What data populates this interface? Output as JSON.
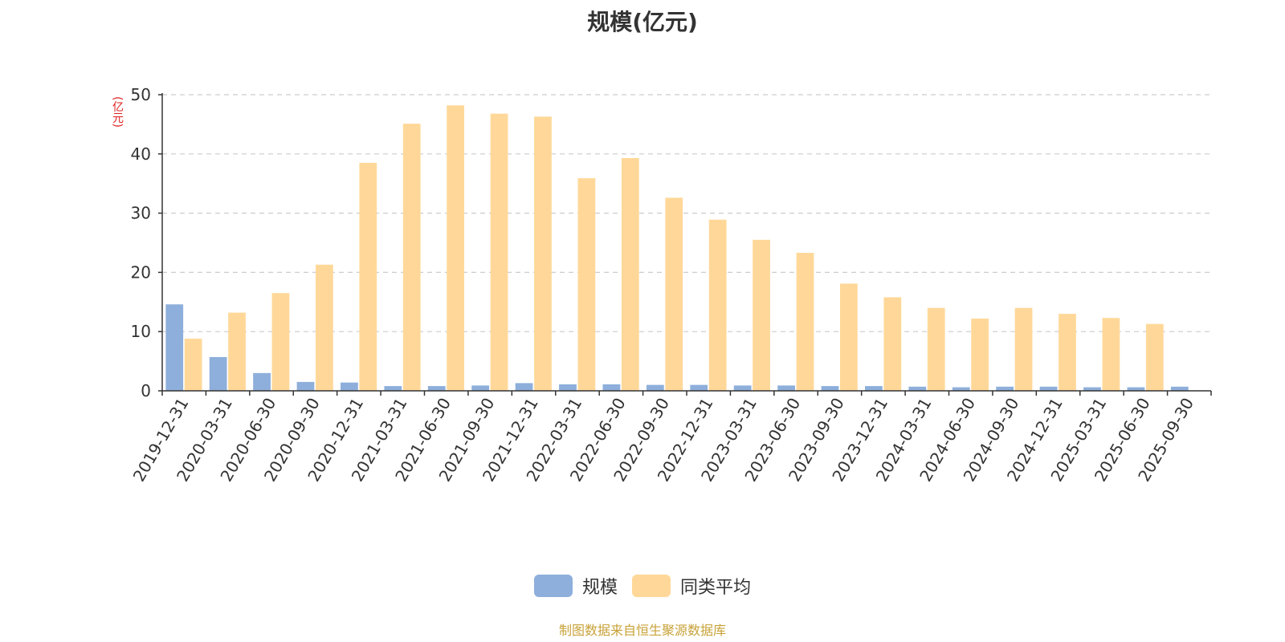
{
  "chart_data": {
    "type": "bar",
    "title": "规模(亿元)",
    "ylabel": "(亿元)",
    "xlabel": "",
    "ylim": [
      0,
      50
    ],
    "yticks": [
      0,
      10,
      20,
      30,
      40,
      50
    ],
    "grid": true,
    "legend_position": "bottom",
    "categories": [
      "2019-12-31",
      "2020-03-31",
      "2020-06-30",
      "2020-09-30",
      "2020-12-31",
      "2021-03-31",
      "2021-06-30",
      "2021-09-30",
      "2021-12-31",
      "2022-03-31",
      "2022-06-30",
      "2022-09-30",
      "2022-12-31",
      "2023-03-31",
      "2023-06-30",
      "2023-09-30",
      "2023-12-31",
      "2024-03-31",
      "2024-06-30",
      "2024-09-30",
      "2024-12-31",
      "2025-03-31",
      "2025-06-30",
      "2025-09-30"
    ],
    "series": [
      {
        "name": "规模",
        "color": "#8eafdb",
        "values": [
          14.6,
          5.7,
          3.0,
          1.5,
          1.4,
          0.8,
          0.8,
          0.9,
          1.3,
          1.1,
          1.1,
          1.0,
          1.0,
          0.9,
          0.9,
          0.8,
          0.8,
          0.7,
          0.6,
          0.7,
          0.7,
          0.6,
          0.6,
          0.7
        ]
      },
      {
        "name": "同类平均",
        "color": "#ffd899",
        "values": [
          8.8,
          13.2,
          16.5,
          21.3,
          38.5,
          45.1,
          48.2,
          46.8,
          46.3,
          35.9,
          39.3,
          32.6,
          28.9,
          25.5,
          23.3,
          18.1,
          15.8,
          14.0,
          12.2,
          14.0,
          13.0,
          12.3,
          11.3,
          null
        ]
      }
    ]
  },
  "source_text": "制图数据来自恒生聚源数据库"
}
